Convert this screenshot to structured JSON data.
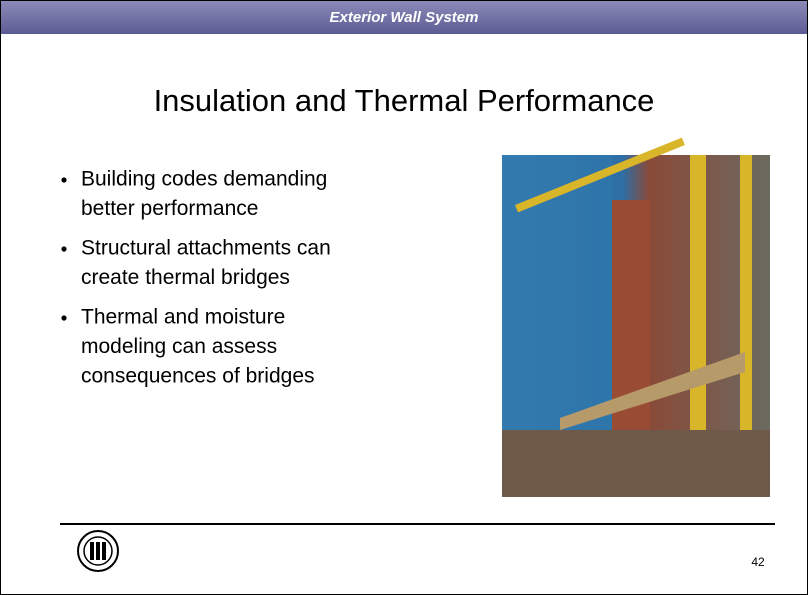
{
  "header": {
    "title": "Exterior Wall System"
  },
  "slide": {
    "title": "Insulation and Thermal Performance",
    "bullets": [
      {
        "lines": [
          "Building codes demanding",
          "better performance"
        ]
      },
      {
        "lines": [
          "Structural attachments can",
          "create thermal bridges"
        ]
      },
      {
        "lines": [
          "Thermal and moisture",
          "modeling can assess",
          "consequences of bridges"
        ]
      }
    ]
  },
  "footer": {
    "page_number": "42"
  }
}
